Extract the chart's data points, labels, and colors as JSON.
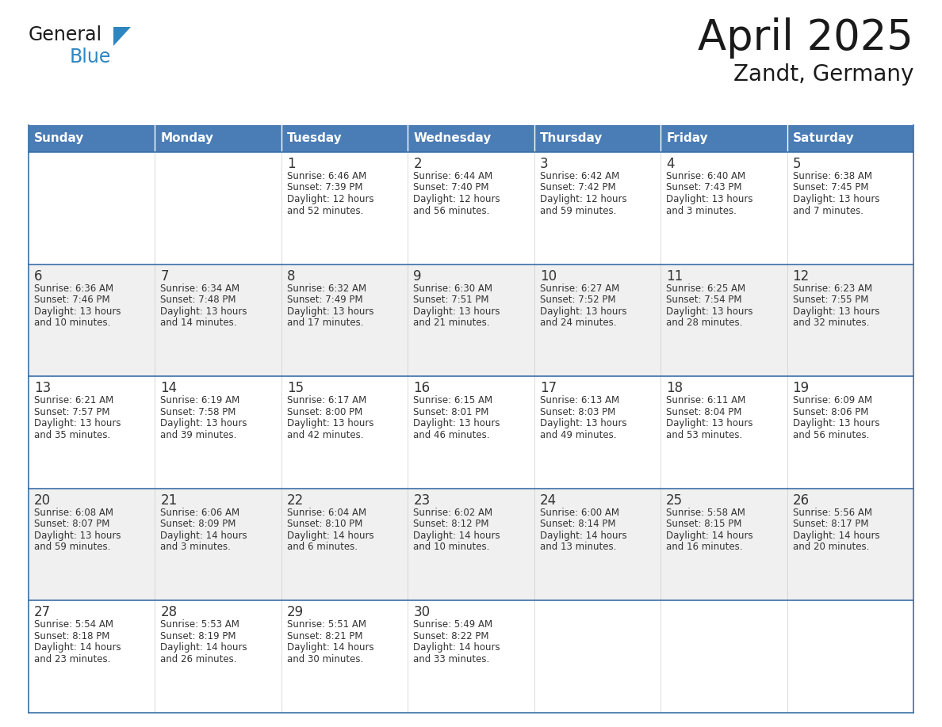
{
  "title": "April 2025",
  "subtitle": "Zandt, Germany",
  "days_of_week": [
    "Sunday",
    "Monday",
    "Tuesday",
    "Wednesday",
    "Thursday",
    "Friday",
    "Saturday"
  ],
  "header_bg": "#4a7cb5",
  "header_text": "#ffffff",
  "row_bg": [
    "#ffffff",
    "#f0f0f0",
    "#ffffff",
    "#f0f0f0",
    "#ffffff"
  ],
  "border_color": "#3a6fa8",
  "text_color": "#333333",
  "title_color": "#1a1a1a",
  "logo_general_color": "#1a1a1a",
  "logo_blue_color": "#2e86c1",
  "weeks": [
    {
      "days": [
        {
          "day_num": null
        },
        {
          "day_num": null
        },
        {
          "day_num": 1,
          "sunrise": "6:46 AM",
          "sunset": "7:39 PM",
          "daylight_l1": "12 hours",
          "daylight_l2": "and 52 minutes."
        },
        {
          "day_num": 2,
          "sunrise": "6:44 AM",
          "sunset": "7:40 PM",
          "daylight_l1": "12 hours",
          "daylight_l2": "and 56 minutes."
        },
        {
          "day_num": 3,
          "sunrise": "6:42 AM",
          "sunset": "7:42 PM",
          "daylight_l1": "12 hours",
          "daylight_l2": "and 59 minutes."
        },
        {
          "day_num": 4,
          "sunrise": "6:40 AM",
          "sunset": "7:43 PM",
          "daylight_l1": "13 hours",
          "daylight_l2": "and 3 minutes."
        },
        {
          "day_num": 5,
          "sunrise": "6:38 AM",
          "sunset": "7:45 PM",
          "daylight_l1": "13 hours",
          "daylight_l2": "and 7 minutes."
        }
      ]
    },
    {
      "days": [
        {
          "day_num": 6,
          "sunrise": "6:36 AM",
          "sunset": "7:46 PM",
          "daylight_l1": "13 hours",
          "daylight_l2": "and 10 minutes."
        },
        {
          "day_num": 7,
          "sunrise": "6:34 AM",
          "sunset": "7:48 PM",
          "daylight_l1": "13 hours",
          "daylight_l2": "and 14 minutes."
        },
        {
          "day_num": 8,
          "sunrise": "6:32 AM",
          "sunset": "7:49 PM",
          "daylight_l1": "13 hours",
          "daylight_l2": "and 17 minutes."
        },
        {
          "day_num": 9,
          "sunrise": "6:30 AM",
          "sunset": "7:51 PM",
          "daylight_l1": "13 hours",
          "daylight_l2": "and 21 minutes."
        },
        {
          "day_num": 10,
          "sunrise": "6:27 AM",
          "sunset": "7:52 PM",
          "daylight_l1": "13 hours",
          "daylight_l2": "and 24 minutes."
        },
        {
          "day_num": 11,
          "sunrise": "6:25 AM",
          "sunset": "7:54 PM",
          "daylight_l1": "13 hours",
          "daylight_l2": "and 28 minutes."
        },
        {
          "day_num": 12,
          "sunrise": "6:23 AM",
          "sunset": "7:55 PM",
          "daylight_l1": "13 hours",
          "daylight_l2": "and 32 minutes."
        }
      ]
    },
    {
      "days": [
        {
          "day_num": 13,
          "sunrise": "6:21 AM",
          "sunset": "7:57 PM",
          "daylight_l1": "13 hours",
          "daylight_l2": "and 35 minutes."
        },
        {
          "day_num": 14,
          "sunrise": "6:19 AM",
          "sunset": "7:58 PM",
          "daylight_l1": "13 hours",
          "daylight_l2": "and 39 minutes."
        },
        {
          "day_num": 15,
          "sunrise": "6:17 AM",
          "sunset": "8:00 PM",
          "daylight_l1": "13 hours",
          "daylight_l2": "and 42 minutes."
        },
        {
          "day_num": 16,
          "sunrise": "6:15 AM",
          "sunset": "8:01 PM",
          "daylight_l1": "13 hours",
          "daylight_l2": "and 46 minutes."
        },
        {
          "day_num": 17,
          "sunrise": "6:13 AM",
          "sunset": "8:03 PM",
          "daylight_l1": "13 hours",
          "daylight_l2": "and 49 minutes."
        },
        {
          "day_num": 18,
          "sunrise": "6:11 AM",
          "sunset": "8:04 PM",
          "daylight_l1": "13 hours",
          "daylight_l2": "and 53 minutes."
        },
        {
          "day_num": 19,
          "sunrise": "6:09 AM",
          "sunset": "8:06 PM",
          "daylight_l1": "13 hours",
          "daylight_l2": "and 56 minutes."
        }
      ]
    },
    {
      "days": [
        {
          "day_num": 20,
          "sunrise": "6:08 AM",
          "sunset": "8:07 PM",
          "daylight_l1": "13 hours",
          "daylight_l2": "and 59 minutes."
        },
        {
          "day_num": 21,
          "sunrise": "6:06 AM",
          "sunset": "8:09 PM",
          "daylight_l1": "14 hours",
          "daylight_l2": "and 3 minutes."
        },
        {
          "day_num": 22,
          "sunrise": "6:04 AM",
          "sunset": "8:10 PM",
          "daylight_l1": "14 hours",
          "daylight_l2": "and 6 minutes."
        },
        {
          "day_num": 23,
          "sunrise": "6:02 AM",
          "sunset": "8:12 PM",
          "daylight_l1": "14 hours",
          "daylight_l2": "and 10 minutes."
        },
        {
          "day_num": 24,
          "sunrise": "6:00 AM",
          "sunset": "8:14 PM",
          "daylight_l1": "14 hours",
          "daylight_l2": "and 13 minutes."
        },
        {
          "day_num": 25,
          "sunrise": "5:58 AM",
          "sunset": "8:15 PM",
          "daylight_l1": "14 hours",
          "daylight_l2": "and 16 minutes."
        },
        {
          "day_num": 26,
          "sunrise": "5:56 AM",
          "sunset": "8:17 PM",
          "daylight_l1": "14 hours",
          "daylight_l2": "and 20 minutes."
        }
      ]
    },
    {
      "days": [
        {
          "day_num": 27,
          "sunrise": "5:54 AM",
          "sunset": "8:18 PM",
          "daylight_l1": "14 hours",
          "daylight_l2": "and 23 minutes."
        },
        {
          "day_num": 28,
          "sunrise": "5:53 AM",
          "sunset": "8:19 PM",
          "daylight_l1": "14 hours",
          "daylight_l2": "and 26 minutes."
        },
        {
          "day_num": 29,
          "sunrise": "5:51 AM",
          "sunset": "8:21 PM",
          "daylight_l1": "14 hours",
          "daylight_l2": "and 30 minutes."
        },
        {
          "day_num": 30,
          "sunrise": "5:49 AM",
          "sunset": "8:22 PM",
          "daylight_l1": "14 hours",
          "daylight_l2": "and 33 minutes."
        },
        {
          "day_num": null
        },
        {
          "day_num": null
        },
        {
          "day_num": null
        }
      ]
    }
  ]
}
